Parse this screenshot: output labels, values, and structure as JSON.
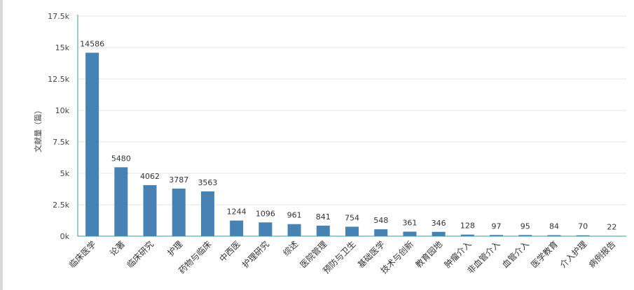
{
  "chart_data": {
    "type": "bar",
    "ylabel": "文献量（篇）",
    "ylim": [
      0,
      17500
    ],
    "yticks": [
      "0k",
      "2.5k",
      "5k",
      "7.5k",
      "10k",
      "12.5k",
      "15k",
      "17.5k"
    ],
    "grid": true,
    "categories": [
      "临床医学",
      "论著",
      "临床研究",
      "护理",
      "药物与临床",
      "中西医",
      "护理研究",
      "综述",
      "医院管理",
      "预防与卫生",
      "基础医学",
      "技术与创新",
      "教育园地",
      "肿瘤介入",
      "非血管介入",
      "血管介入",
      "医学教育",
      "介入护理",
      "病例报告"
    ],
    "values": [
      14586,
      5480,
      4062,
      3787,
      3563,
      1244,
      1096,
      961,
      841,
      754,
      548,
      361,
      346,
      128,
      97,
      95,
      84,
      70,
      22
    ],
    "colors": {
      "bar": "#4682b4",
      "grid": "#e6e6e6",
      "axis": "#2aa198"
    }
  }
}
